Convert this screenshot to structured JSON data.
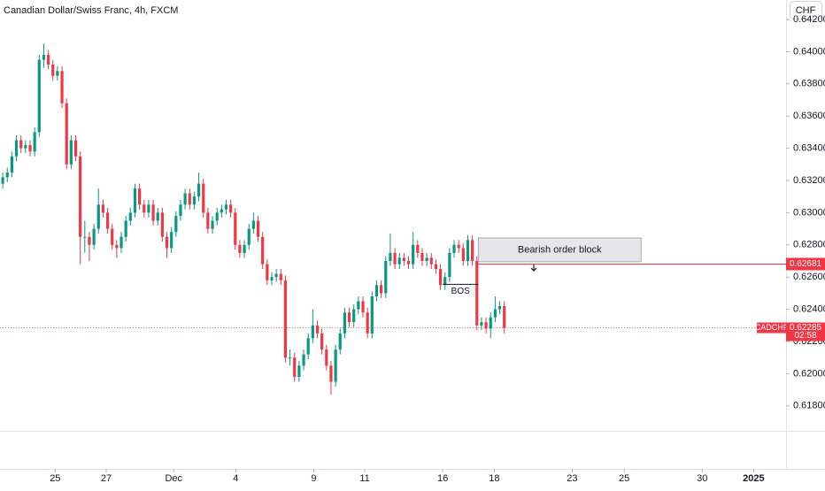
{
  "header": {
    "symbol_title": "Canadian Dollar/Swiss Franc, 4h, FXCM",
    "currency_button": "CHF"
  },
  "chart_data": {
    "type": "candlestick",
    "open": [
      0.6318,
      0.6322,
      0.6325,
      0.6335,
      0.6345,
      0.634,
      0.6342,
      0.6338,
      0.635,
      0.6395,
      0.6398,
      0.6392,
      0.6385,
      0.6388,
      0.6368,
      0.633,
      0.6345,
      0.6335,
      0.6285,
      0.6285,
      0.628,
      0.629,
      0.6305,
      0.63,
      0.629,
      0.628,
      0.6278,
      0.6285,
      0.6295,
      0.63,
      0.6315,
      0.6305,
      0.63,
      0.6305,
      0.6295,
      0.63,
      0.6285,
      0.6278,
      0.6288,
      0.6298,
      0.6305,
      0.6312,
      0.6305,
      0.631,
      0.6318,
      0.63,
      0.629,
      0.6295,
      0.63,
      0.6302,
      0.6305,
      0.63,
      0.628,
      0.6275,
      0.628,
      0.629,
      0.6295,
      0.6285,
      0.6268,
      0.6258,
      0.626,
      0.6262,
      0.6258,
      0.621,
      0.621,
      0.6198,
      0.6205,
      0.6212,
      0.6222,
      0.623,
      0.6225,
      0.6215,
      0.6205,
      0.6195,
      0.6215,
      0.6225,
      0.6238,
      0.6232,
      0.624,
      0.6245,
      0.6238,
      0.6225,
      0.6248,
      0.6255,
      0.625,
      0.627,
      0.6275,
      0.6268,
      0.6272,
      0.627,
      0.6268,
      0.628,
      0.6275,
      0.627,
      0.6272,
      0.6268,
      0.6265,
      0.6255,
      0.626,
      0.6275,
      0.628,
      0.6278,
      0.627,
      0.6283,
      0.627,
      0.623,
      0.6232,
      0.6228,
      0.6235,
      0.624,
      0.6242
    ],
    "high": [
      0.6325,
      0.6328,
      0.6338,
      0.6348,
      0.6348,
      0.6345,
      0.6345,
      0.6353,
      0.6398,
      0.6405,
      0.6401,
      0.6395,
      0.6391,
      0.6391,
      0.6371,
      0.6348,
      0.6348,
      0.6338,
      0.6295,
      0.6288,
      0.6293,
      0.6315,
      0.6308,
      0.6303,
      0.6293,
      0.6283,
      0.6288,
      0.6298,
      0.6303,
      0.6318,
      0.6318,
      0.6308,
      0.6308,
      0.6308,
      0.6303,
      0.6303,
      0.6288,
      0.6291,
      0.6301,
      0.6308,
      0.6315,
      0.6315,
      0.6313,
      0.6325,
      0.6321,
      0.6303,
      0.6298,
      0.6303,
      0.6305,
      0.6308,
      0.6308,
      0.6303,
      0.6283,
      0.6283,
      0.6293,
      0.63,
      0.6298,
      0.6288,
      0.6271,
      0.6263,
      0.6265,
      0.6265,
      0.6261,
      0.6215,
      0.6213,
      0.6208,
      0.6215,
      0.6225,
      0.624,
      0.6233,
      0.6228,
      0.6218,
      0.6208,
      0.6218,
      0.6228,
      0.6241,
      0.6241,
      0.6243,
      0.6248,
      0.6248,
      0.6241,
      0.6251,
      0.6258,
      0.6258,
      0.6273,
      0.6287,
      0.6278,
      0.6275,
      0.6275,
      0.6273,
      0.6288,
      0.6283,
      0.6278,
      0.6275,
      0.6275,
      0.6271,
      0.6268,
      0.6263,
      0.6278,
      0.6283,
      0.6283,
      0.6281,
      0.6286,
      0.6286,
      0.6273,
      0.6235,
      0.6235,
      0.6238,
      0.6248,
      0.6245,
      0.6245
    ],
    "low": [
      0.6315,
      0.6319,
      0.6322,
      0.6332,
      0.6337,
      0.6337,
      0.6335,
      0.6335,
      0.6347,
      0.639,
      0.6389,
      0.6382,
      0.6382,
      0.6365,
      0.6327,
      0.6327,
      0.6332,
      0.6268,
      0.6275,
      0.627,
      0.6277,
      0.6287,
      0.6297,
      0.6287,
      0.6277,
      0.6272,
      0.6275,
      0.6282,
      0.6292,
      0.6297,
      0.6302,
      0.6297,
      0.6297,
      0.6292,
      0.6292,
      0.6282,
      0.6272,
      0.6275,
      0.6285,
      0.6295,
      0.6302,
      0.6302,
      0.6302,
      0.6307,
      0.6297,
      0.6287,
      0.6287,
      0.6292,
      0.6297,
      0.6299,
      0.6297,
      0.6277,
      0.6272,
      0.6272,
      0.6277,
      0.6287,
      0.6282,
      0.6265,
      0.6255,
      0.6255,
      0.6257,
      0.6255,
      0.6207,
      0.6205,
      0.6195,
      0.6195,
      0.6202,
      0.6209,
      0.6219,
      0.6222,
      0.6212,
      0.6202,
      0.6187,
      0.6192,
      0.6212,
      0.6222,
      0.6229,
      0.6229,
      0.6237,
      0.6235,
      0.6222,
      0.6222,
      0.6245,
      0.6247,
      0.6247,
      0.6267,
      0.6265,
      0.6265,
      0.6267,
      0.6265,
      0.6265,
      0.6272,
      0.6267,
      0.6267,
      0.6265,
      0.6262,
      0.6252,
      0.6252,
      0.6257,
      0.6272,
      0.6275,
      0.6267,
      0.6267,
      0.6267,
      0.6227,
      0.6227,
      0.6225,
      0.6222,
      0.6232,
      0.6237,
      0.6225
    ],
    "close": [
      0.6322,
      0.6325,
      0.6335,
      0.6345,
      0.634,
      0.6342,
      0.6338,
      0.635,
      0.6395,
      0.6398,
      0.6392,
      0.6385,
      0.6388,
      0.6368,
      0.633,
      0.6345,
      0.6335,
      0.6285,
      0.6285,
      0.628,
      0.629,
      0.6305,
      0.63,
      0.629,
      0.628,
      0.6278,
      0.6285,
      0.6295,
      0.63,
      0.6315,
      0.6305,
      0.63,
      0.6305,
      0.6295,
      0.63,
      0.6285,
      0.6278,
      0.6288,
      0.6298,
      0.6305,
      0.6312,
      0.6305,
      0.631,
      0.6318,
      0.63,
      0.629,
      0.6295,
      0.63,
      0.6302,
      0.6305,
      0.63,
      0.628,
      0.6275,
      0.628,
      0.629,
      0.6295,
      0.6285,
      0.6268,
      0.6258,
      0.626,
      0.6262,
      0.6258,
      0.621,
      0.621,
      0.6198,
      0.6205,
      0.6212,
      0.6222,
      0.623,
      0.6225,
      0.6215,
      0.6205,
      0.6195,
      0.6215,
      0.6225,
      0.6238,
      0.6232,
      0.624,
      0.6245,
      0.6238,
      0.6225,
      0.6248,
      0.6255,
      0.625,
      0.627,
      0.6275,
      0.6268,
      0.6272,
      0.627,
      0.6268,
      0.628,
      0.6275,
      0.627,
      0.6272,
      0.6268,
      0.6265,
      0.6255,
      0.626,
      0.6275,
      0.628,
      0.6278,
      0.627,
      0.6283,
      0.627,
      0.623,
      0.6232,
      0.6228,
      0.6235,
      0.624,
      0.6242,
      0.62285
    ],
    "colors": {
      "up": "#089981",
      "down": "#f23645"
    },
    "xlim": [
      -0.6,
      171.8
    ],
    "xticks": [
      {
        "value": 11.5,
        "label": "25"
      },
      {
        "value": 22.7,
        "label": "27"
      },
      {
        "value": 37.5,
        "label": "Dec"
      },
      {
        "value": 51.1,
        "label": "4"
      },
      {
        "value": 68.2,
        "label": "9"
      },
      {
        "value": 79.4,
        "label": "11"
      },
      {
        "value": 96.5,
        "label": "16"
      },
      {
        "value": 107.8,
        "label": "18"
      },
      {
        "value": 124.9,
        "label": "23"
      },
      {
        "value": 136.3,
        "label": "25"
      },
      {
        "value": 153.4,
        "label": "30"
      },
      {
        "value": 164.7,
        "label": "2025"
      }
    ],
    "ylim": [
      0.61645,
      0.64321
    ],
    "yticks": [
      {
        "value": 0.642,
        "label": "0.64200"
      },
      {
        "value": 0.64,
        "label": "0.64000"
      },
      {
        "value": 0.638,
        "label": "0.63800"
      },
      {
        "value": 0.636,
        "label": "0.63600"
      },
      {
        "value": 0.634,
        "label": "0.63400"
      },
      {
        "value": 0.632,
        "label": "0.63200"
      },
      {
        "value": 0.63,
        "label": "0.63000"
      },
      {
        "value": 0.628,
        "label": "0.62800"
      },
      {
        "value": 0.626,
        "label": "0.62600"
      },
      {
        "value": 0.624,
        "label": "0.62400"
      },
      {
        "value": 0.622,
        "label": "0.62200"
      },
      {
        "value": 0.62,
        "label": "0.62000"
      },
      {
        "value": 0.618,
        "label": "0.61800"
      }
    ],
    "annotations": {
      "order_block": {
        "label": "Bearish order block",
        "x": [
          104.3,
          140
        ],
        "y": [
          0.62695,
          0.62843
        ]
      },
      "bos": {
        "label": "BOS",
        "x": [
          96.5,
          104.3
        ],
        "y": 0.62555
      },
      "level_line": {
        "value": 0.62681,
        "label": "0.62681",
        "color": "#f23645"
      },
      "last_price": {
        "symbol": "CADCHF",
        "value": 0.62285,
        "label": "0.62285",
        "countdown": "02:58"
      }
    }
  }
}
